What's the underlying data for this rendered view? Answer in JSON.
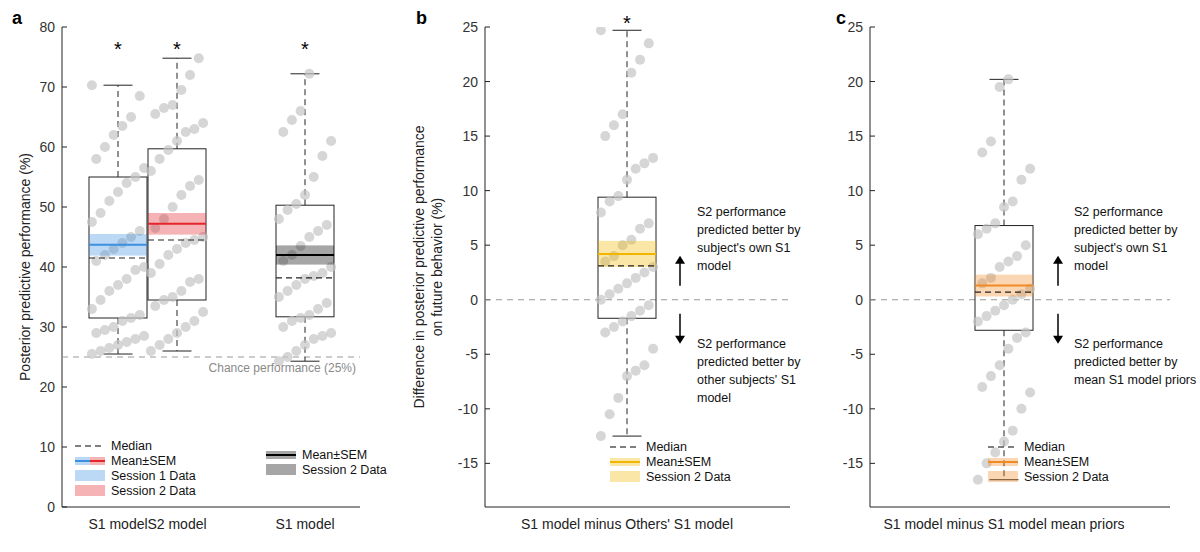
{
  "chart_data": [
    {
      "type": "box",
      "panel_label": "a",
      "y_label": [
        "Posterior predictive performance (%)"
      ],
      "ylim": [
        0,
        80
      ],
      "yticks": [
        0,
        10,
        20,
        30,
        40,
        50,
        60,
        70,
        80
      ],
      "categories": [
        "S1 model",
        "S2 model",
        "S1 model"
      ],
      "reference_line": {
        "value": 25,
        "label": "Chance performance (25%)"
      },
      "series": [
        {
          "name": "Session 1 Data",
          "color": "#3d8fe0",
          "whisker_low": 25.5,
          "q1": 31.5,
          "median": 41.5,
          "q3": 55,
          "whisker_high": 70.3,
          "mean": 43.7,
          "sem": 1.8,
          "significance": "*",
          "points": [
            25.5,
            26,
            26.5,
            27,
            27.5,
            28,
            28.5,
            29,
            29.5,
            30,
            31,
            31.5,
            32,
            33,
            34.5,
            36,
            37,
            38,
            39.5,
            40,
            41,
            42,
            43,
            44,
            45,
            46,
            47.5,
            49,
            51,
            52.5,
            54,
            55,
            56.5,
            58,
            60,
            62,
            63.5,
            65,
            68.5,
            70.3
          ]
        },
        {
          "name": "Session 2 Data",
          "color": "#e3262c",
          "whisker_low": 26,
          "q1": 34.5,
          "median": 44.5,
          "q3": 59.7,
          "whisker_high": 74.8,
          "mean": 47.2,
          "sem": 1.8,
          "significance": "*",
          "points": [
            26,
            27,
            28,
            29,
            30,
            31,
            32.5,
            33.5,
            34.5,
            35,
            36,
            37.5,
            38,
            39,
            40.5,
            42,
            43,
            44,
            44.5,
            45,
            46.5,
            48,
            50,
            52,
            53.5,
            54.5,
            56,
            58,
            59.5,
            61,
            62.5,
            63,
            64,
            65.5,
            66.5,
            67,
            69.5,
            72,
            74.8
          ]
        },
        {
          "name": "Session 2 Data",
          "color": "#000000",
          "whisker_low": 24.3,
          "q1": 31.7,
          "median": 38.2,
          "q3": 50.3,
          "whisker_high": 72.2,
          "mean": 42,
          "sem": 1.6,
          "significance": "*",
          "points": [
            24.3,
            25,
            26,
            27,
            28,
            28.5,
            29,
            30,
            31,
            31.5,
            32,
            33,
            34,
            35,
            36,
            37,
            38,
            38.5,
            39,
            40,
            41,
            42,
            43.5,
            45,
            46,
            47,
            48,
            49.5,
            50.5,
            52,
            55,
            58.5,
            61,
            62.5,
            64.5,
            66,
            72.2
          ]
        }
      ],
      "legend": "lower left",
      "legend_entries": [
        [
          {
            "label": "Median",
            "marker": "dashed-line",
            "color": "#000000",
            "line_style": "dashed"
          },
          {
            "label": "Mean±SEM",
            "marker": "band",
            "colors": [
              "#3d8fe0",
              "#e3262c"
            ]
          },
          {
            "label": "Session 1 Data",
            "marker": "patch",
            "color": "#3d8fe0"
          },
          {
            "label": "Session 2 Data",
            "marker": "patch",
            "color": "#e3262c"
          }
        ],
        [
          {
            "label": "Mean±SEM",
            "marker": "band",
            "color": "#000000"
          },
          {
            "label": "Session 2 Data",
            "marker": "patch",
            "color": "#000000"
          }
        ]
      ]
    },
    {
      "type": "box",
      "panel_label": "b",
      "y_label": [
        "Difference in posterior predictive performance",
        "on future behavior (%)"
      ],
      "ylim": [
        -19,
        25
      ],
      "yticks": [
        -15,
        -10,
        -5,
        0,
        5,
        10,
        15,
        20,
        25
      ],
      "categories": [
        "S1 model minus Others' S1 model"
      ],
      "reference_line": {
        "value": 0
      },
      "series": [
        {
          "name": "Session 2 Data",
          "color": "#f2b600",
          "whisker_low": -12.5,
          "q1": -1.7,
          "median": 3.1,
          "q3": 9.4,
          "whisker_high": 24.7,
          "mean": 4.2,
          "sem": 1.2,
          "significance": "*",
          "points": [
            -12.5,
            -10.5,
            -9,
            -7,
            -6.5,
            -6,
            -4.5,
            -3,
            -2.5,
            -2,
            -1.5,
            -1,
            -0.5,
            0,
            0.5,
            1,
            1.5,
            2,
            2.5,
            3,
            3.5,
            4,
            5,
            5.5,
            6.5,
            7,
            8,
            9,
            9.5,
            11,
            12,
            12.5,
            13,
            15,
            16,
            17,
            20.8,
            22,
            23.5,
            24.7
          ]
        }
      ],
      "annotations": [
        [
          "S2 performance",
          "predicted better by",
          "subject's own S1",
          "model"
        ],
        [
          "S2 performance",
          "predicted better by",
          "other subjects' S1",
          "model"
        ]
      ],
      "legend": "lower left",
      "legend_entries": [
        [
          {
            "label": "Median",
            "marker": "dashed-line",
            "color": "#000000",
            "line_style": "dashed"
          },
          {
            "label": "Mean±SEM",
            "marker": "band",
            "color": "#f2b600"
          },
          {
            "label": "Session 2 Data",
            "marker": "patch",
            "color": "#f2b600"
          }
        ]
      ]
    },
    {
      "type": "box",
      "panel_label": "c",
      "ylim": [
        -19,
        25
      ],
      "yticks": [
        -15,
        -10,
        -5,
        0,
        5,
        10,
        15,
        20,
        25
      ],
      "categories": [
        "S1 model minus S1 model mean priors"
      ],
      "reference_line": {
        "value": 0
      },
      "series": [
        {
          "name": "Session 2 Data",
          "color": "#f08a24",
          "whisker_low": -16.5,
          "q1": -2.8,
          "median": 0.7,
          "q3": 6.8,
          "whisker_high": 20.2,
          "mean": 1.3,
          "sem": 1.0,
          "points": [
            -16.5,
            -15,
            -14,
            -13,
            -12,
            -10,
            -8.5,
            -8,
            -7,
            -6,
            -4.5,
            -3.5,
            -3,
            -2,
            -1.5,
            -1,
            -0.5,
            0,
            0.5,
            1,
            1.5,
            2,
            3,
            3.5,
            4,
            5,
            6,
            6.5,
            7,
            8.5,
            9,
            11,
            12,
            13.5,
            14.5,
            19.5,
            20.2
          ]
        }
      ],
      "annotations": [
        [
          "S2 performance",
          "predicted better by",
          "subject's own S1",
          "model"
        ],
        [
          "S2 performance",
          "predicted better by",
          "mean S1 model priors"
        ]
      ],
      "legend": "lower left",
      "legend_entries": [
        [
          {
            "label": "Median",
            "marker": "dashed-line",
            "color": "#000000",
            "line_style": "dashed"
          },
          {
            "label": "Mean±SEM",
            "marker": "band",
            "color": "#f08a24"
          },
          {
            "label": "Session 2 Data",
            "marker": "patch",
            "color": "#f08a24"
          }
        ]
      ]
    }
  ]
}
